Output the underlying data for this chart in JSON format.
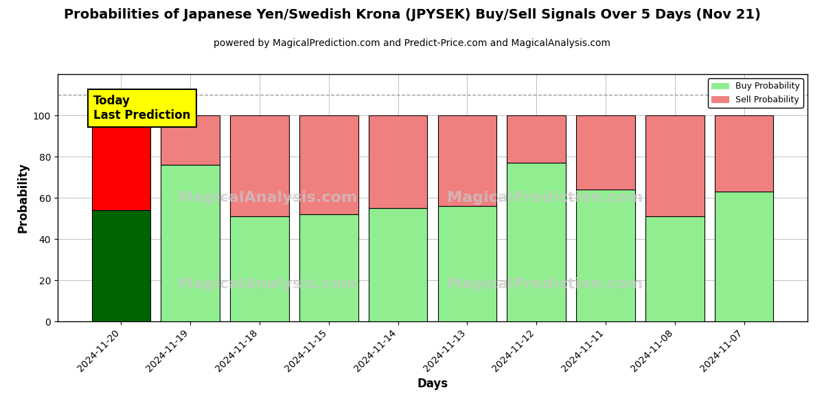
{
  "title": "Probabilities of Japanese Yen/Swedish Krona (JPYSEK) Buy/Sell Signals Over 5 Days (Nov 21)",
  "subtitle": "powered by MagicalPrediction.com and Predict-Price.com and MagicalAnalysis.com",
  "xlabel": "Days",
  "ylabel": "Probability",
  "categories": [
    "2024-11-20",
    "2024-11-19",
    "2024-11-18",
    "2024-11-15",
    "2024-11-14",
    "2024-11-13",
    "2024-11-12",
    "2024-11-11",
    "2024-11-08",
    "2024-11-07"
  ],
  "buy_values": [
    54,
    76,
    51,
    52,
    55,
    56,
    77,
    64,
    51,
    63
  ],
  "sell_values": [
    46,
    24,
    49,
    48,
    45,
    44,
    23,
    36,
    49,
    37
  ],
  "today_buy_color": "#006400",
  "today_sell_color": "#FF0000",
  "buy_color": "#90EE90",
  "sell_color": "#F08080",
  "today_annotation": "Today\nLast Prediction",
  "dashed_line_y": 110,
  "ylim": [
    0,
    120
  ],
  "yticks": [
    0,
    20,
    40,
    60,
    80,
    100
  ],
  "legend_buy_label": "Buy Probability",
  "legend_sell_label": "Sell Probability",
  "bar_width": 0.85,
  "edgecolor": "black",
  "background_color": "white",
  "grid_color": "gray",
  "grid_alpha": 0.5
}
